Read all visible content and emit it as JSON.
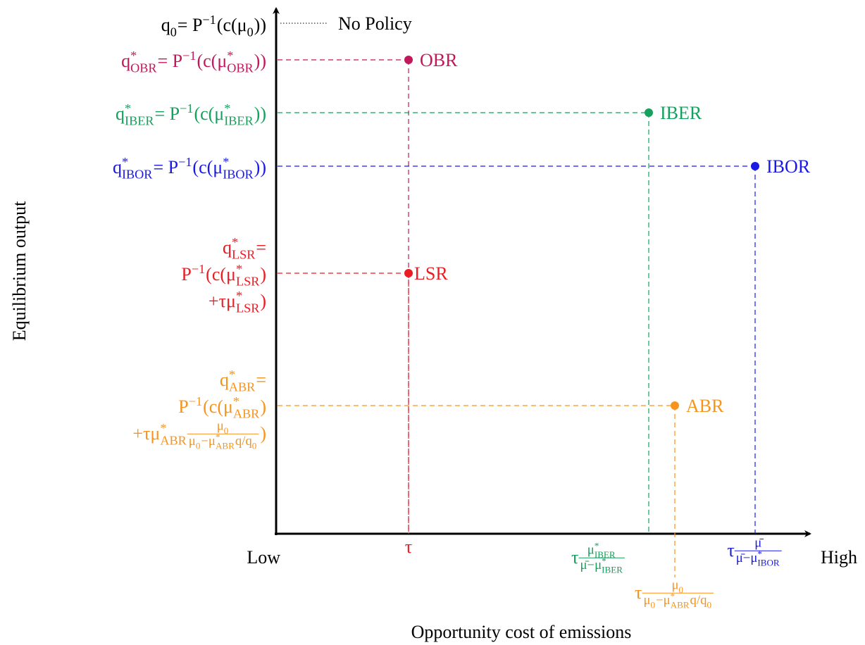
{
  "axes": {
    "y_label": "Equilibrium output",
    "x_label": "Opportunity cost of emissions",
    "x_low": "Low",
    "x_high": "High"
  },
  "no_policy": {
    "output_label": [
      [
        "q",
        {
          "sub": "0"
        },
        " = P",
        {
          "sup": "−1"
        },
        "(c(μ",
        {
          "sub": "0"
        },
        "))"
      ]
    ],
    "legend": "No Policy"
  },
  "policies": [
    {
      "name": "OBR",
      "color": "#c2185b",
      "output_label": [
        [
          "q",
          {
            "sup": "*",
            "sub": "OBR"
          },
          " = P",
          {
            "sup": "−1"
          },
          "(c(μ",
          {
            "sup": "*",
            "sub": "OBR"
          },
          "))"
        ]
      ]
    },
    {
      "name": "IBER",
      "color": "#16a05d",
      "output_label": [
        [
          "q",
          {
            "sup": "*",
            "sub": "IBER"
          },
          " = P",
          {
            "sup": "−1"
          },
          "(c(μ",
          {
            "sup": "*",
            "sub": "IBER"
          },
          "))"
        ]
      ],
      "cost_label": [
        "τ",
        {
          "num": [
            "μ",
            {
              "sup": "*",
              "sub": "IBER"
            }
          ],
          "den": [
            "μ̄−μ",
            {
              "sup": "*",
              "sub": "IBER"
            }
          ]
        }
      ]
    },
    {
      "name": "IBOR",
      "color": "#1a1ae6",
      "output_label": [
        [
          "q",
          {
            "sup": "*",
            "sub": "IBOR"
          },
          " = P",
          {
            "sup": "−1"
          },
          "(c(μ",
          {
            "sup": "*",
            "sub": "IBOR"
          },
          "))"
        ]
      ],
      "cost_label": [
        "τ",
        {
          "num": [
            "μ̄"
          ],
          "den": [
            "μ̄−μ",
            {
              "sup": "*",
              "sub": "IBOR"
            }
          ]
        }
      ]
    },
    {
      "name": "LSR",
      "color": "#ec1c24",
      "output_label": [
        [
          "q",
          {
            "sup": "*",
            "sub": "LSR"
          },
          " ="
        ],
        [
          "P",
          {
            "sup": "−1"
          },
          "(c(μ",
          {
            "sup": "*",
            "sub": "LSR"
          },
          ")"
        ],
        [
          "+τμ",
          {
            "sup": "*",
            "sub": "LSR"
          },
          ")"
        ]
      ],
      "cost_label": [
        "τ"
      ]
    },
    {
      "name": "ABR",
      "color": "#f7941d",
      "output_label": [
        [
          "q",
          {
            "sup": "*",
            "sub": "ABR"
          },
          " ="
        ],
        [
          "P",
          {
            "sup": "−1"
          },
          "(c(μ",
          {
            "sup": "*",
            "sub": "ABR"
          },
          ")"
        ],
        [
          "+τμ",
          {
            "sup": "*",
            "sub": "ABR"
          },
          {
            "num": [
              "μ",
              {
                "sub": "0"
              }
            ],
            "den": [
              "μ",
              {
                "sub": "0"
              },
              "−μ",
              {
                "sup": "*",
                "sub": "ABR"
              },
              "q/q",
              {
                "sub": "0"
              }
            ]
          },
          ")"
        ]
      ],
      "cost_label": [
        "τ",
        {
          "num": [
            "μ",
            {
              "sub": "0"
            }
          ],
          "den": [
            "μ",
            {
              "sub": "0"
            },
            "−μ",
            {
              "sup": "*",
              "sub": "ABR"
            },
            "q/q",
            {
              "sub": "0"
            }
          ]
        }
      ]
    }
  ]
}
